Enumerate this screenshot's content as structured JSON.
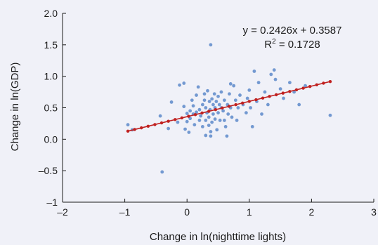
{
  "chart_data": {
    "type": "scatter",
    "xlabel": "Change in ln(nighttime lights)",
    "ylabel": "Change in ln(GDP)",
    "xlim": [
      -2,
      3
    ],
    "ylim": [
      -1,
      2
    ],
    "xticks": [
      -2,
      -1,
      0,
      1,
      2,
      3
    ],
    "yticks": [
      -1,
      -0.5,
      0,
      0.5,
      1,
      1.5,
      2
    ],
    "xtick_labels": [
      "–2",
      "–1",
      "0",
      "1",
      "2",
      "3"
    ],
    "ytick_labels": [
      "–1",
      "–0.5",
      "0.0",
      "0.5",
      "1.0",
      "1.5",
      "2.0"
    ],
    "grid": false,
    "equation": "y = 0.2426x + 0.3587",
    "r2_label": "R",
    "r2_exp": "2",
    "r2_value": " = 0.1728",
    "fit": {
      "slope": 0.2426,
      "intercept": 0.3587,
      "x_range": [
        -0.95,
        2.3
      ],
      "markers": 31
    },
    "points": [
      [
        -0.95,
        0.23
      ],
      [
        -0.88,
        0.15
      ],
      [
        -0.43,
        0.37
      ],
      [
        -0.4,
        -0.52
      ],
      [
        -0.3,
        0.17
      ],
      [
        -0.25,
        0.59
      ],
      [
        -0.15,
        0.27
      ],
      [
        -0.12,
        0.86
      ],
      [
        -0.05,
        0.89
      ],
      [
        -0.05,
        0.52
      ],
      [
        -0.03,
        0.16
      ],
      [
        0.0,
        0.28
      ],
      [
        0.0,
        0.41
      ],
      [
        0.03,
        0.11
      ],
      [
        0.05,
        0.33
      ],
      [
        0.05,
        0.45
      ],
      [
        0.08,
        0.62
      ],
      [
        0.1,
        0.4
      ],
      [
        0.1,
        0.53
      ],
      [
        0.12,
        0.23
      ],
      [
        0.15,
        0.43
      ],
      [
        0.15,
        0.7
      ],
      [
        0.18,
        0.83
      ],
      [
        0.2,
        0.3
      ],
      [
        0.2,
        0.47
      ],
      [
        0.22,
        0.37
      ],
      [
        0.25,
        0.55
      ],
      [
        0.25,
        0.2
      ],
      [
        0.28,
        0.62
      ],
      [
        0.28,
        0.72
      ],
      [
        0.3,
        0.06
      ],
      [
        0.3,
        0.3
      ],
      [
        0.3,
        0.5
      ],
      [
        0.32,
        0.42
      ],
      [
        0.33,
        0.77
      ],
      [
        0.35,
        0.35
      ],
      [
        0.35,
        0.22
      ],
      [
        0.36,
        0.6
      ],
      [
        0.37,
        0.47
      ],
      [
        0.38,
        0.12
      ],
      [
        0.38,
        0.05
      ],
      [
        0.38,
        1.5
      ],
      [
        0.4,
        0.64
      ],
      [
        0.4,
        0.27
      ],
      [
        0.42,
        0.55
      ],
      [
        0.42,
        0.4
      ],
      [
        0.44,
        0.72
      ],
      [
        0.45,
        0.5
      ],
      [
        0.45,
        0.32
      ],
      [
        0.47,
        0.6
      ],
      [
        0.48,
        0.15
      ],
      [
        0.5,
        0.42
      ],
      [
        0.5,
        0.68
      ],
      [
        0.52,
        0.55
      ],
      [
        0.53,
        0.3
      ],
      [
        0.55,
        0.5
      ],
      [
        0.55,
        0.75
      ],
      [
        0.58,
        0.45
      ],
      [
        0.6,
        0.62
      ],
      [
        0.6,
        0.3
      ],
      [
        0.62,
        0.2
      ],
      [
        0.64,
        0.05
      ],
      [
        0.65,
        0.55
      ],
      [
        0.66,
        0.4
      ],
      [
        0.68,
        0.72
      ],
      [
        0.7,
        0.88
      ],
      [
        0.7,
        0.5
      ],
      [
        0.72,
        0.35
      ],
      [
        0.75,
        0.85
      ],
      [
        0.78,
        0.62
      ],
      [
        0.8,
        0.3
      ],
      [
        0.82,
        0.5
      ],
      [
        0.85,
        0.7
      ],
      [
        0.9,
        0.55
      ],
      [
        0.95,
        0.42
      ],
      [
        0.97,
        0.65
      ],
      [
        1.0,
        0.78
      ],
      [
        1.02,
        0.5
      ],
      [
        1.05,
        0.2
      ],
      [
        1.08,
        1.08
      ],
      [
        1.12,
        0.6
      ],
      [
        1.15,
        0.9
      ],
      [
        1.2,
        0.4
      ],
      [
        1.25,
        0.75
      ],
      [
        1.3,
        0.55
      ],
      [
        1.35,
        1.03
      ],
      [
        1.4,
        1.1
      ],
      [
        1.42,
        0.95
      ],
      [
        1.5,
        0.8
      ],
      [
        1.55,
        0.65
      ],
      [
        1.65,
        0.9
      ],
      [
        1.72,
        0.75
      ],
      [
        1.8,
        0.55
      ],
      [
        1.9,
        0.85
      ],
      [
        2.3,
        0.38
      ]
    ]
  }
}
